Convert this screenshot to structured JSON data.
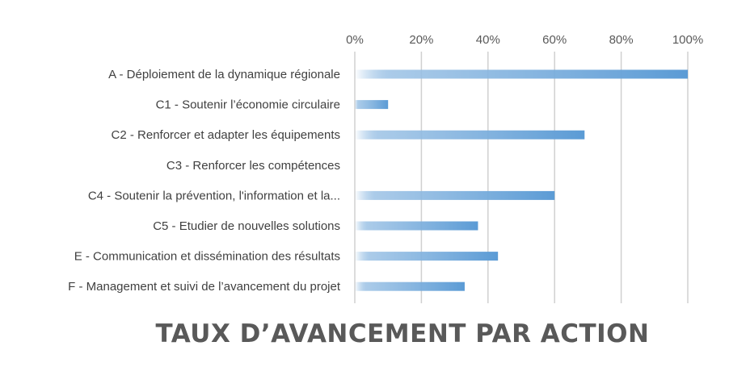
{
  "chart_data": {
    "type": "bar",
    "orientation": "horizontal",
    "title": "TAUX D’AVANCEMENT PAR ACTION",
    "categories": [
      "A - Déploiement de la dynamique régionale",
      "C1 - Soutenir l’économie circulaire",
      "C2 - Renforcer et adapter les équipements",
      "C3 - Renforcer les compétences",
      "C4 - Soutenir la prévention, l'information et la...",
      "C5 - Etudier de nouvelles solutions",
      "E - Communication et dissémination des résultats",
      "F - Management et suivi de l’avancement du projet"
    ],
    "values": [
      100,
      10,
      69,
      0,
      60,
      37,
      43,
      33
    ],
    "xlim": [
      0,
      100
    ],
    "x_ticks": [
      "0%",
      "20%",
      "40%",
      "60%",
      "80%",
      "100%"
    ],
    "x_axis_position": "top",
    "grid": true,
    "legend": "none",
    "bar_color": "#5b9bd5"
  }
}
